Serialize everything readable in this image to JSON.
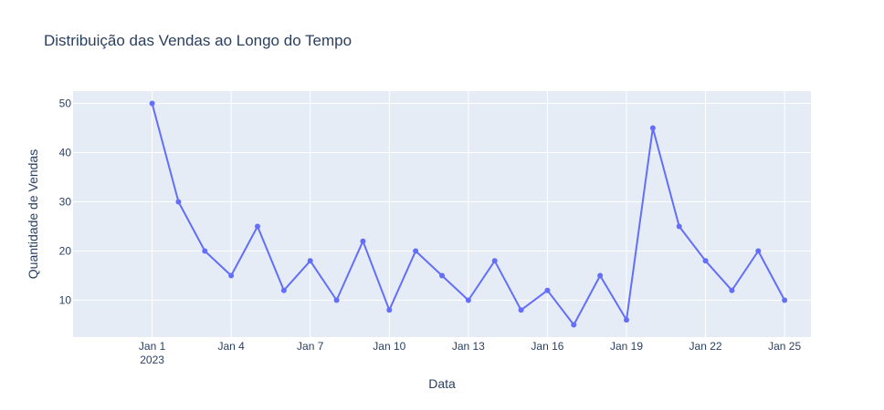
{
  "chart_data": {
    "type": "line",
    "title": "Distribuição das Vendas ao Longo do Tempo",
    "xlabel": "Data",
    "ylabel": "Quantidade de Vendas",
    "x": [
      "2023-01-01",
      "2023-01-02",
      "2023-01-03",
      "2023-01-04",
      "2023-01-05",
      "2023-01-06",
      "2023-01-07",
      "2023-01-08",
      "2023-01-09",
      "2023-01-10",
      "2023-01-11",
      "2023-01-12",
      "2023-01-13",
      "2023-01-14",
      "2023-01-15",
      "2023-01-16",
      "2023-01-17",
      "2023-01-18",
      "2023-01-19",
      "2023-01-20",
      "2023-01-21",
      "2023-01-22",
      "2023-01-23",
      "2023-01-24",
      "2023-01-25"
    ],
    "series": [
      {
        "values": [
          50,
          30,
          20,
          15,
          25,
          12,
          18,
          10,
          22,
          8,
          20,
          15,
          10,
          18,
          8,
          12,
          5,
          15,
          6,
          45,
          25,
          18,
          12,
          20,
          10
        ],
        "color": "#636efa"
      }
    ],
    "x_ticks": [
      {
        "value": "2023-01-01",
        "label": "Jan 1",
        "sublabel": "2023"
      },
      {
        "value": "2023-01-04",
        "label": "Jan 4"
      },
      {
        "value": "2023-01-07",
        "label": "Jan 7"
      },
      {
        "value": "2023-01-10",
        "label": "Jan 10"
      },
      {
        "value": "2023-01-13",
        "label": "Jan 13"
      },
      {
        "value": "2023-01-16",
        "label": "Jan 16"
      },
      {
        "value": "2023-01-19",
        "label": "Jan 19"
      },
      {
        "value": "2023-01-22",
        "label": "Jan 22"
      },
      {
        "value": "2023-01-25",
        "label": "Jan 25"
      }
    ],
    "y_ticks": [
      10,
      20,
      30,
      40,
      50
    ],
    "xlim": [
      "2022-12-29",
      "2023-01-26"
    ],
    "ylim": [
      2.5,
      52.5
    ],
    "grid": true,
    "legend": "none",
    "colors": {
      "plot_background": "#e5ecf6",
      "grid": "#ffffff",
      "text": "#2a3f5f"
    }
  }
}
